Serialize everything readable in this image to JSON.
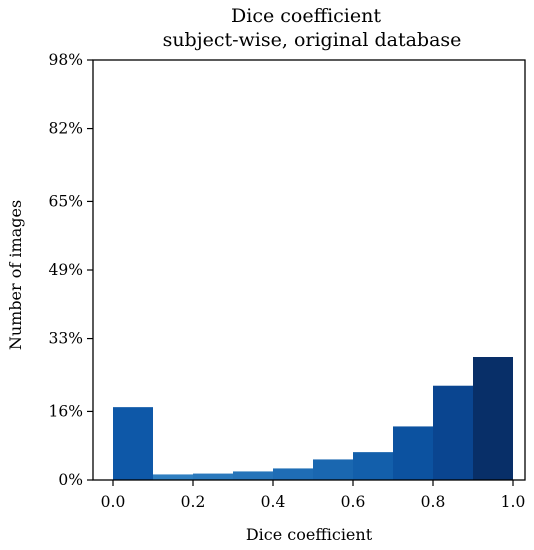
{
  "chart_data": {
    "type": "bar",
    "title": "Dice coefficient",
    "subtitle": "subject-wise, original database",
    "xlabel": "Dice coefficient",
    "ylabel": "Number of images",
    "xlim": [
      -0.05,
      1.03
    ],
    "ylim": [
      0,
      98
    ],
    "bin_edges": [
      0.0,
      0.1,
      0.2,
      0.3,
      0.4,
      0.5,
      0.6,
      0.7,
      0.8,
      0.9,
      1.0
    ],
    "values": [
      17.0,
      1.3,
      1.5,
      2.0,
      2.7,
      4.8,
      6.5,
      12.5,
      22.0,
      28.7
    ],
    "colors": [
      "#0e58a8",
      "#2f7fc1",
      "#2a79bd",
      "#2674b9",
      "#1f6db5",
      "#1a67b0",
      "#135fab",
      "#0c52a0",
      "#0a4590",
      "#082f68"
    ],
    "x_ticks": [
      {
        "value": 0.0,
        "label": "0.0"
      },
      {
        "value": 0.2,
        "label": "0.2"
      },
      {
        "value": 0.4,
        "label": "0.4"
      },
      {
        "value": 0.6,
        "label": "0.6"
      },
      {
        "value": 0.8,
        "label": "0.8"
      },
      {
        "value": 1.0,
        "label": "1.0"
      }
    ],
    "y_ticks": [
      {
        "value": 0,
        "label": "0%"
      },
      {
        "value": 16,
        "label": "16%"
      },
      {
        "value": 33,
        "label": "33%"
      },
      {
        "value": 49,
        "label": "49%"
      },
      {
        "value": 65,
        "label": "65%"
      },
      {
        "value": 82,
        "label": "82%"
      },
      {
        "value": 98,
        "label": "98%"
      }
    ],
    "grid": false,
    "legend": "none"
  }
}
